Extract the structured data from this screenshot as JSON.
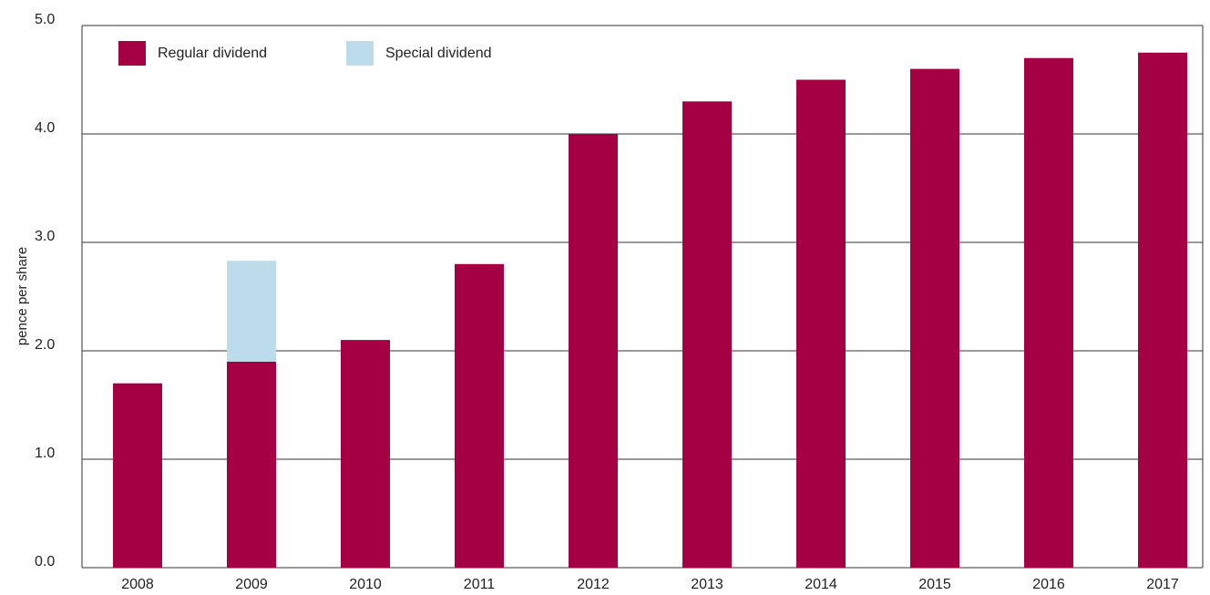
{
  "chart_data": {
    "type": "bar",
    "stacked": true,
    "categories": [
      "2008",
      "2009",
      "2010",
      "2011",
      "2012",
      "2013",
      "2014",
      "2015",
      "2016",
      "2017"
    ],
    "series": [
      {
        "name": "Regular dividend",
        "color": "#a50044",
        "values": [
          1.7,
          1.9,
          2.1,
          2.8,
          4.0,
          4.3,
          4.5,
          4.6,
          4.7,
          4.75
        ]
      },
      {
        "name": "Special dividend",
        "color": "#bcdcec",
        "values": [
          0,
          0.93,
          0,
          0,
          0,
          0,
          0,
          0,
          0,
          0
        ]
      }
    ],
    "title": "",
    "xlabel": "",
    "ylabel": "pence per share",
    "ylim": [
      0,
      5
    ],
    "yticks": [
      "0.0",
      "1.0",
      "2.0",
      "3.0",
      "4.0",
      "5.0"
    ],
    "grid": true,
    "legend_position": "top-left"
  }
}
